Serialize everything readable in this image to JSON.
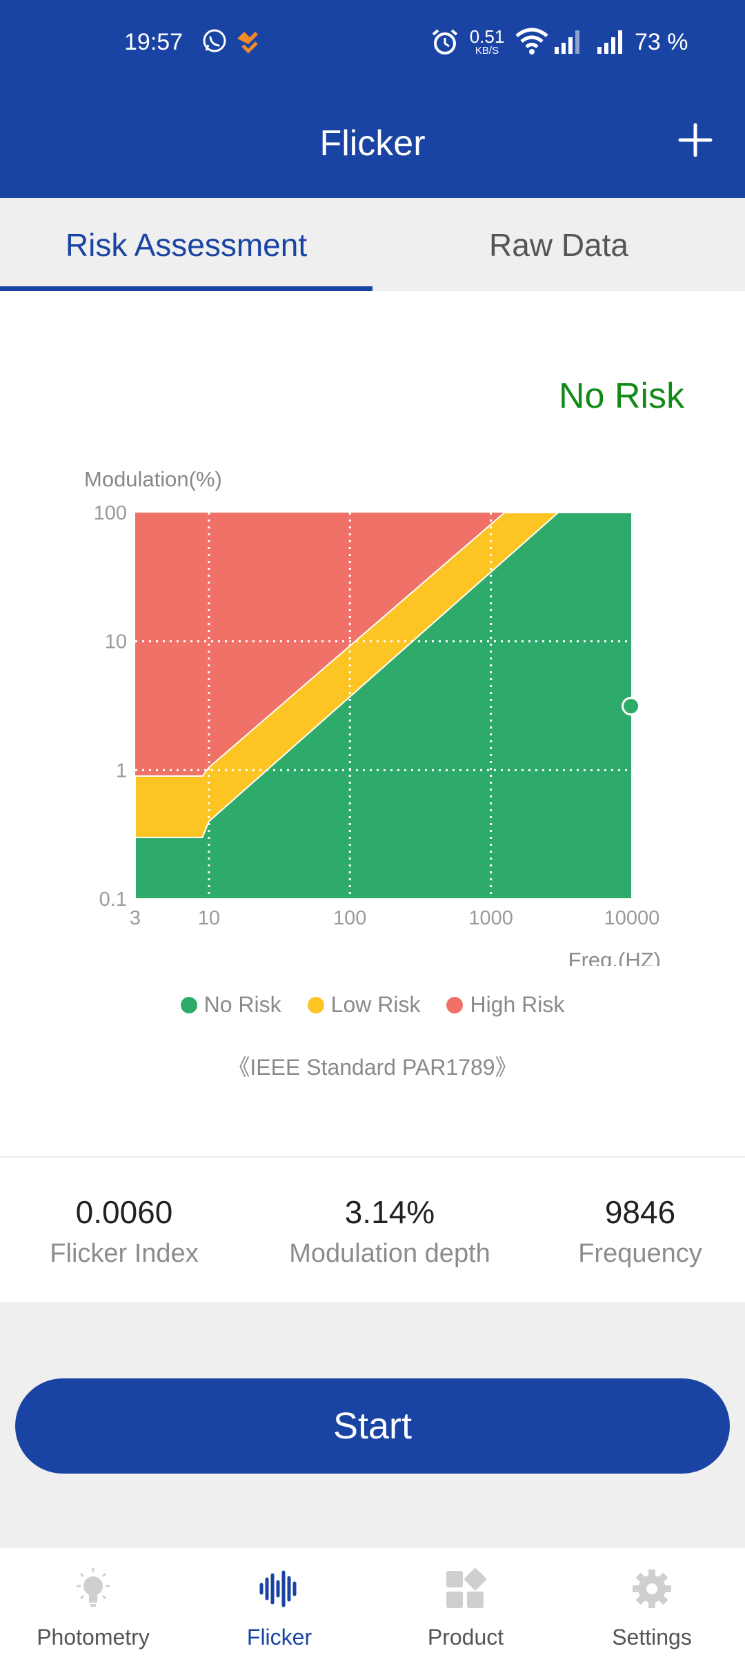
{
  "status_bar": {
    "time": "19:57",
    "net_speed_value": "0.51",
    "net_speed_unit": "KB/S",
    "battery": "73 %"
  },
  "app_bar": {
    "title": "Flicker",
    "add_icon": "plus-icon"
  },
  "tabs": [
    {
      "label": "Risk Assessment",
      "active": true
    },
    {
      "label": "Raw Data",
      "active": false
    }
  ],
  "risk_status": {
    "text": "No Risk",
    "color": "#128a17"
  },
  "chart_data": {
    "type": "area",
    "ylabel": "Modulation(%)",
    "xlabel": "Freq.(HZ)",
    "x_scale": "log",
    "y_scale": "log",
    "xlim": [
      3,
      10000
    ],
    "ylim": [
      0.1,
      100
    ],
    "x_ticks": [
      "3",
      "10",
      "100",
      "1000",
      "10000"
    ],
    "y_ticks": [
      "100",
      "10",
      "1",
      "0.1"
    ],
    "grid": "dotted",
    "regions": [
      {
        "name": "No Risk",
        "color": "#2eaa6a",
        "boundary": [
          [
            3,
            0.3
          ],
          [
            9,
            0.3
          ],
          [
            10,
            0.4
          ],
          [
            3000,
            100
          ]
        ]
      },
      {
        "name": "Low Risk",
        "color": "#fdc524",
        "boundary": [
          [
            3,
            0.9
          ],
          [
            9,
            0.9
          ],
          [
            10,
            1.05
          ],
          [
            1250,
            100
          ]
        ]
      },
      {
        "name": "High Risk",
        "color": "#ef7167"
      }
    ],
    "measurement": {
      "x": 9846,
      "y": 3.14
    }
  },
  "legend": [
    {
      "label": "No Risk",
      "color": "#2eaa6a"
    },
    {
      "label": "Low Risk",
      "color": "#fdc524"
    },
    {
      "label": "High Risk",
      "color": "#ef7167"
    }
  ],
  "standard_note": "《IEEE Standard PAR1789》",
  "stats": [
    {
      "value": "0.0060",
      "label": "Flicker Index"
    },
    {
      "value": "3.14%",
      "label": "Modulation depth"
    },
    {
      "value": "9846",
      "label": "Frequency"
    }
  ],
  "start_button": "Start",
  "bottom_nav": [
    {
      "label": "Photometry",
      "icon": "bulb-icon",
      "active": false
    },
    {
      "label": "Flicker",
      "icon": "waveform-icon",
      "active": true
    },
    {
      "label": "Product",
      "icon": "grid-icon",
      "active": false
    },
    {
      "label": "Settings",
      "icon": "gear-icon",
      "active": false
    }
  ],
  "colors": {
    "primary": "#1a44a3",
    "no_risk": "#2eaa6a",
    "low_risk": "#fdc524",
    "high_risk": "#ef7167"
  }
}
